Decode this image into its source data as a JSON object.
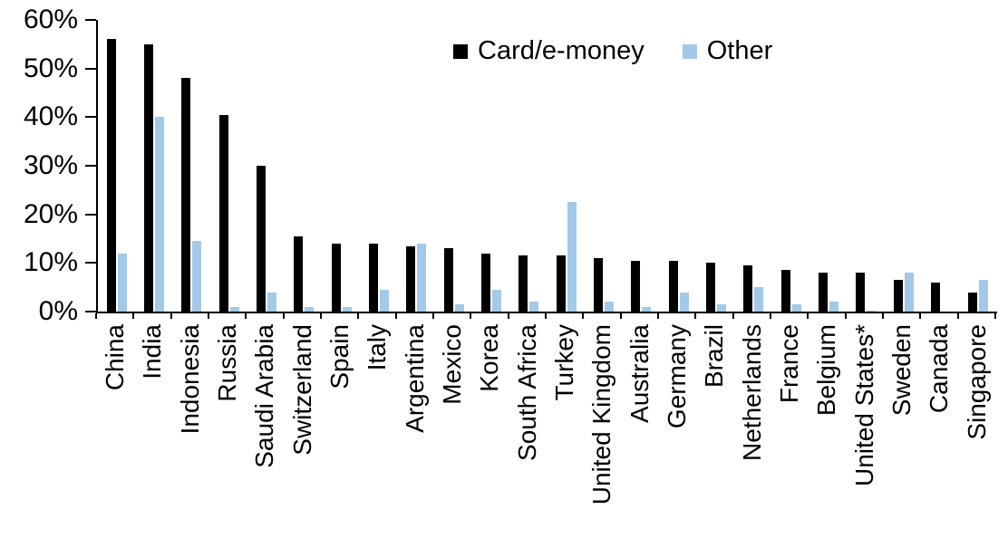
{
  "chart_data": {
    "type": "bar",
    "title": "",
    "xlabel": "",
    "ylabel": "",
    "ylim": [
      0,
      60
    ],
    "yticks": [
      "0%",
      "10%",
      "20%",
      "30%",
      "40%",
      "50%",
      "60%"
    ],
    "grid": false,
    "legend_position": "top-center",
    "categories": [
      "China",
      "India",
      "Indonesia",
      "Russia",
      "Saudi Arabia",
      "Switzerland",
      "Spain",
      "Italy",
      "Argentina",
      "Mexico",
      "Korea",
      "South Africa",
      "Turkey",
      "United Kingdom",
      "Australia",
      "Germany",
      "Brazil",
      "Netherlands",
      "France",
      "Belgium",
      "United States*",
      "Sweden",
      "Canada",
      "Singapore"
    ],
    "series": [
      {
        "name": "Card/e-money",
        "color": "#000000",
        "values": [
          56,
          55,
          48,
          40.5,
          30,
          15.5,
          14,
          14,
          13.5,
          13,
          12,
          11.5,
          11.5,
          11,
          10.5,
          10.5,
          10,
          9.5,
          8.5,
          8,
          8,
          6.5,
          6,
          4
        ]
      },
      {
        "name": "Other",
        "color": "#A3C9E8",
        "values": [
          12,
          40,
          14.5,
          1,
          4,
          1,
          1,
          4.5,
          14,
          1.5,
          4.5,
          2,
          22.5,
          2,
          1,
          4,
          1.5,
          5,
          1.5,
          2,
          0.2,
          8,
          0,
          6.5
        ]
      }
    ]
  }
}
